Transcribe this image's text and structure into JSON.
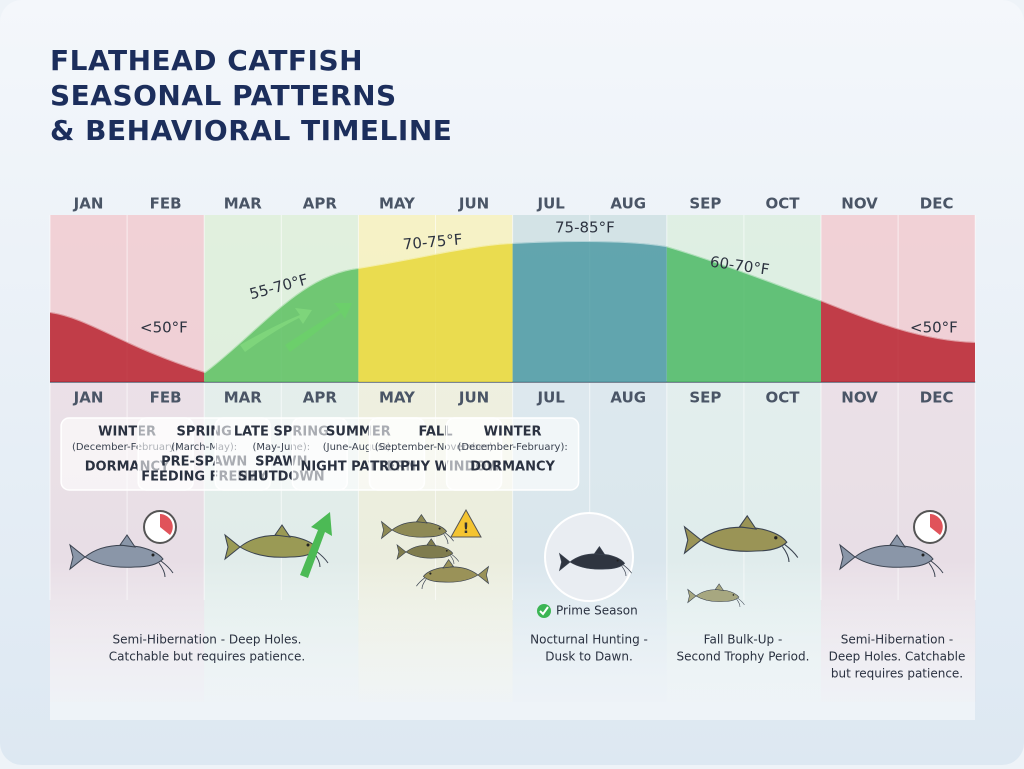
{
  "title": [
    "FLATHEAD CATFISH",
    "SEASONAL PATTERNS",
    "& BEHAVIORAL TIMELINE"
  ],
  "months": [
    "JAN",
    "FEB",
    "MAR",
    "APR",
    "MAY",
    "JUN",
    "JUL",
    "AUG",
    "SEP",
    "OCT",
    "NOV",
    "DEC"
  ],
  "temperatures": [
    "<50°F",
    "55-70°F",
    "70-75°F",
    "75-85°F",
    "60-70°F",
    "<50°F"
  ],
  "seasons": [
    {
      "name": "WINTER",
      "range": "(December-February):",
      "behavior": [
        "DORMANCY"
      ]
    },
    {
      "name": "SPRING",
      "range": "(March-May):",
      "behavior": [
        "PRE-SPAWN",
        "FEEDING FRENZY"
      ]
    },
    {
      "name": "LATE SPRING",
      "range": "(May-June):",
      "behavior": [
        "SPAWN",
        "SHUTDOWN"
      ]
    },
    {
      "name": "SUMMER",
      "range": "(June-August):",
      "behavior": [
        "NIGHT PATTERN"
      ]
    },
    {
      "name": "FALL",
      "range": "(September-November):",
      "behavior": [
        "TROPHY WINDOW"
      ]
    },
    {
      "name": "WINTER",
      "range": "(December-February):",
      "behavior": [
        "DORMANCY"
      ]
    }
  ],
  "badge": "Prime Season",
  "notes": [
    {
      "lines": [
        "Semi-Hibernation - Deep Holes.",
        "Catchable but requires patience."
      ]
    },
    {
      "lines": [
        "Nocturnal Hunting -",
        "Dusk to Dawn."
      ]
    },
    {
      "lines": [
        "Fall Bulk-Up -",
        "Second Trophy Period."
      ]
    },
    {
      "lines": [
        "Semi-Hibernation -",
        "Deep Holes. Catchable",
        "but requires patience."
      ]
    }
  ]
}
